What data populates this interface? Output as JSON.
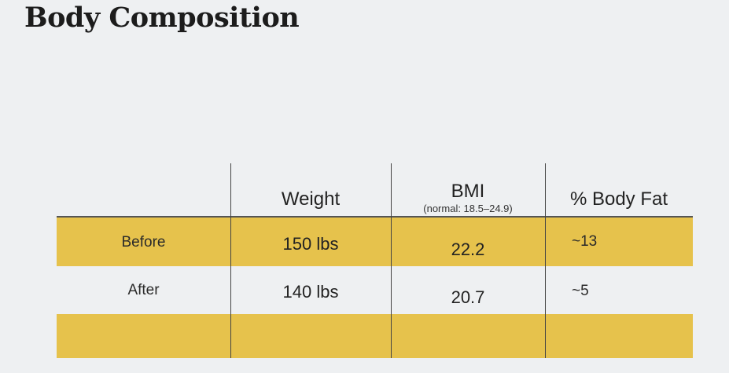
{
  "title": "Body Composition",
  "table": {
    "headers": {
      "weight": "Weight",
      "bmi": "BMI",
      "bmi_note": "(normal: 18.5–24.9)",
      "body_fat": "% Body Fat"
    },
    "rows": [
      {
        "label": "Before",
        "weight": "150 lbs",
        "bmi": "22.2",
        "body_fat": "~13"
      },
      {
        "label": "After",
        "weight": "140 lbs",
        "bmi": "20.7",
        "body_fat": "~5"
      }
    ]
  },
  "colors": {
    "band": "#e6c24c",
    "background": "#eef0f2"
  }
}
